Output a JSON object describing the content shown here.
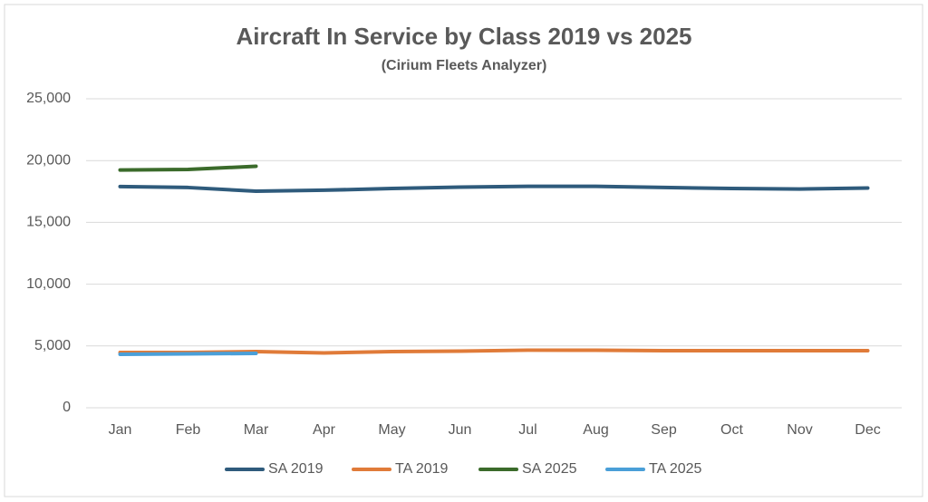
{
  "chart_data": {
    "type": "line",
    "title": "Aircraft In Service by Class 2019 vs 2025",
    "subtitle": "(Cirium Fleets Analyzer)",
    "categories": [
      "Jan",
      "Feb",
      "Mar",
      "Apr",
      "May",
      "Jun",
      "Jul",
      "Aug",
      "Sep",
      "Oct",
      "Nov",
      "Dec"
    ],
    "series": [
      {
        "name": "SA 2019",
        "color": "#2f5b7c",
        "values": [
          17900,
          17820,
          17520,
          17600,
          17740,
          17850,
          17920,
          17920,
          17820,
          17740,
          17700,
          17780
        ]
      },
      {
        "name": "TA 2019",
        "color": "#e07b39",
        "values": [
          4470,
          4470,
          4550,
          4440,
          4550,
          4580,
          4660,
          4660,
          4620,
          4620,
          4620,
          4620
        ]
      },
      {
        "name": "SA 2025",
        "color": "#3b6b2b",
        "values": [
          19240,
          19280,
          19540,
          null,
          null,
          null,
          null,
          null,
          null,
          null,
          null,
          null
        ]
      },
      {
        "name": "TA 2025",
        "color": "#4a9fd8",
        "values": [
          4330,
          4360,
          4400,
          null,
          null,
          null,
          null,
          null,
          null,
          null,
          null,
          null
        ]
      }
    ],
    "ylim": [
      0,
      25000
    ],
    "yticks": [
      0,
      {
        "value": 5000,
        "label": "5,000"
      },
      {
        "value": 10000,
        "label": "10,000"
      },
      {
        "value": 15000,
        "label": "15,000"
      },
      {
        "value": 20000,
        "label": "20,000"
      },
      {
        "value": 25000,
        "label": "25,000"
      }
    ],
    "grid": true,
    "legend": "bottom"
  }
}
